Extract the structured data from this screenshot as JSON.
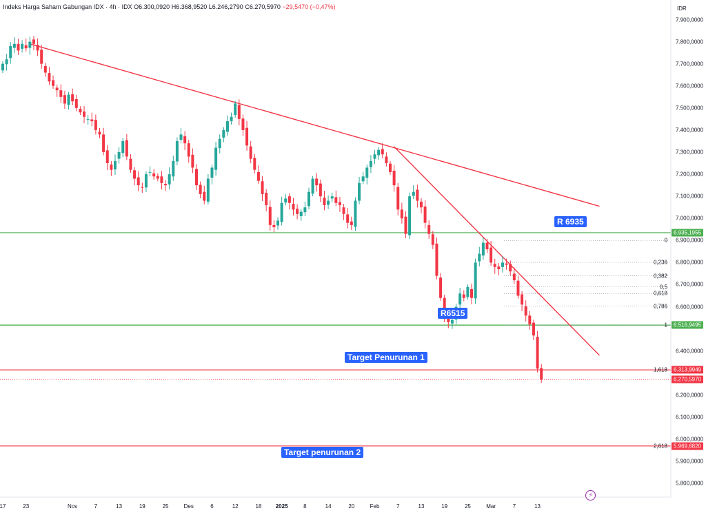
{
  "header": {
    "title": "Indeks Harga Saham Gabungan IDX · 4h · IDX",
    "open": "O6.300,0920",
    "high": "H6.368,9520",
    "low": "L6.246,2790",
    "close": "C6.270,5970",
    "change": "−29,5470 (−0,47%)"
  },
  "currency": "IDR",
  "tags": {
    "r6935": "R 6935",
    "r6515": "R6515",
    "target1": "Target Penurunan 1",
    "target2": "Target penurunan 2"
  },
  "price_boxes": [
    {
      "label": "6.935,1955",
      "value": 6935.1955,
      "color": "#4caf50"
    },
    {
      "label": "6.516,9495",
      "value": 6516.9495,
      "color": "#4caf50"
    },
    {
      "label": "6.313,9949",
      "value": 6313.9949,
      "color": "#f23645"
    },
    {
      "label": "6.270,5970",
      "value": 6270.597,
      "color": "#f23645"
    },
    {
      "label": "5.969,6820",
      "value": 5969.682,
      "color": "#f23645"
    }
  ],
  "fib_levels": [
    {
      "ratio": "0",
      "value": 6900
    },
    {
      "ratio": "0,236",
      "value": 6801
    },
    {
      "ratio": "0,382",
      "value": 6740
    },
    {
      "ratio": "0,5",
      "value": 6690
    },
    {
      "ratio": "0,618",
      "value": 6660
    },
    {
      "ratio": "0,786",
      "value": 6603
    },
    {
      "ratio": "1",
      "value": 6517
    },
    {
      "ratio": "1,618",
      "value": 6314
    },
    {
      "ratio": "2,618",
      "value": 5969.682
    }
  ],
  "colors": {
    "up": "#26a69a",
    "down": "#f23645",
    "support": "#4caf50",
    "resistance": "#f23645",
    "tag": "#2962ff"
  },
  "chart_data": {
    "type": "candlestick",
    "y_axis_labels": [
      "7.900,0000",
      "7.800,0000",
      "7.700,0000",
      "7.600,0000",
      "7.500,0000",
      "7.400,0000",
      "7.300,0000",
      "7.200,0000",
      "7.100,0000",
      "7.000,0000",
      "6.900,0000",
      "6.800,0000",
      "6.700,0000",
      "6.600,0000",
      "6.400,0000",
      "6.200,0000",
      "6.100,0000",
      "6.000,0000",
      "5.900,0000",
      "5.800,0000"
    ],
    "y_axis_values": [
      7900,
      7800,
      7700,
      7600,
      7500,
      7400,
      7300,
      7200,
      7100,
      7000,
      6900,
      6800,
      6700,
      6600,
      6400,
      6200,
      6100,
      6000,
      5900,
      5800
    ],
    "ylim": [
      5740,
      7960
    ],
    "x_axis_labels": [
      "17",
      "23",
      "Nov",
      "7",
      "13",
      "19",
      "25",
      "Des",
      "6",
      "12",
      "18",
      "2025",
      "8",
      "14",
      "20",
      "Feb",
      "7",
      "13",
      "19",
      "25",
      "Mar",
      "7",
      "13"
    ],
    "x_axis_index": [
      0,
      6,
      18,
      24,
      30,
      36,
      42,
      48,
      54,
      60,
      66,
      72,
      78,
      84,
      90,
      96,
      102,
      108,
      114,
      120,
      126,
      132,
      138
    ],
    "n_periods": 150,
    "horizontal_levels": [
      {
        "name": "R 6935",
        "value": 6935.1955,
        "color": "#4caf50"
      },
      {
        "name": "R6515",
        "value": 6516.9495,
        "color": "#4caf50"
      },
      {
        "name": "Target Penurunan 1",
        "value": 6313.9949,
        "color": "#f23645"
      },
      {
        "name": "Target penurunan 2",
        "value": 5969.682,
        "color": "#f23645"
      }
    ],
    "trendlines": [
      {
        "from": [
          7,
          7790
        ],
        "to": [
          154,
          7055
        ]
      },
      {
        "from": [
          101,
          7325
        ],
        "to": [
          154,
          6380
        ]
      }
    ],
    "closes": [
      7700,
      7720,
      7780,
      7790,
      7760,
      7790,
      7770,
      7800,
      7790,
      7760,
      7700,
      7660,
      7620,
      7600,
      7580,
      7550,
      7520,
      7560,
      7530,
      7500,
      7480,
      7460,
      7450,
      7440,
      7400,
      7380,
      7300,
      7250,
      7220,
      7260,
      7300,
      7350,
      7280,
      7220,
      7180,
      7150,
      7140,
      7200,
      7210,
      7190,
      7180,
      7160,
      7150,
      7200,
      7260,
      7350,
      7380,
      7340,
      7280,
      7230,
      7150,
      7110,
      7080,
      7180,
      7230,
      7320,
      7360,
      7400,
      7440,
      7460,
      7520,
      7450,
      7400,
      7330,
      7270,
      7220,
      7170,
      7110,
      7060,
      6970,
      6960,
      6990,
      7070,
      7090,
      7070,
      7040,
      7020,
      7030,
      7050,
      7120,
      7180,
      7150,
      7100,
      7060,
      7080,
      7100,
      7070,
      7060,
      7020,
      6980,
      6970,
      7080,
      7160,
      7190,
      7230,
      7260,
      7290,
      7310,
      7290,
      7250,
      7210,
      7150,
      7040,
      7000,
      6930,
      7100,
      7120,
      7080,
      7050,
      6980,
      6930,
      6880,
      6740,
      6640,
      6560,
      6530,
      6540,
      6600,
      6660,
      6640,
      6690,
      6640,
      6800,
      6840,
      6890,
      6860,
      6800,
      6780,
      6770,
      6800,
      6790,
      6760,
      6720,
      6650,
      6610,
      6560,
      6520,
      6470,
      6320,
      6270
    ]
  }
}
